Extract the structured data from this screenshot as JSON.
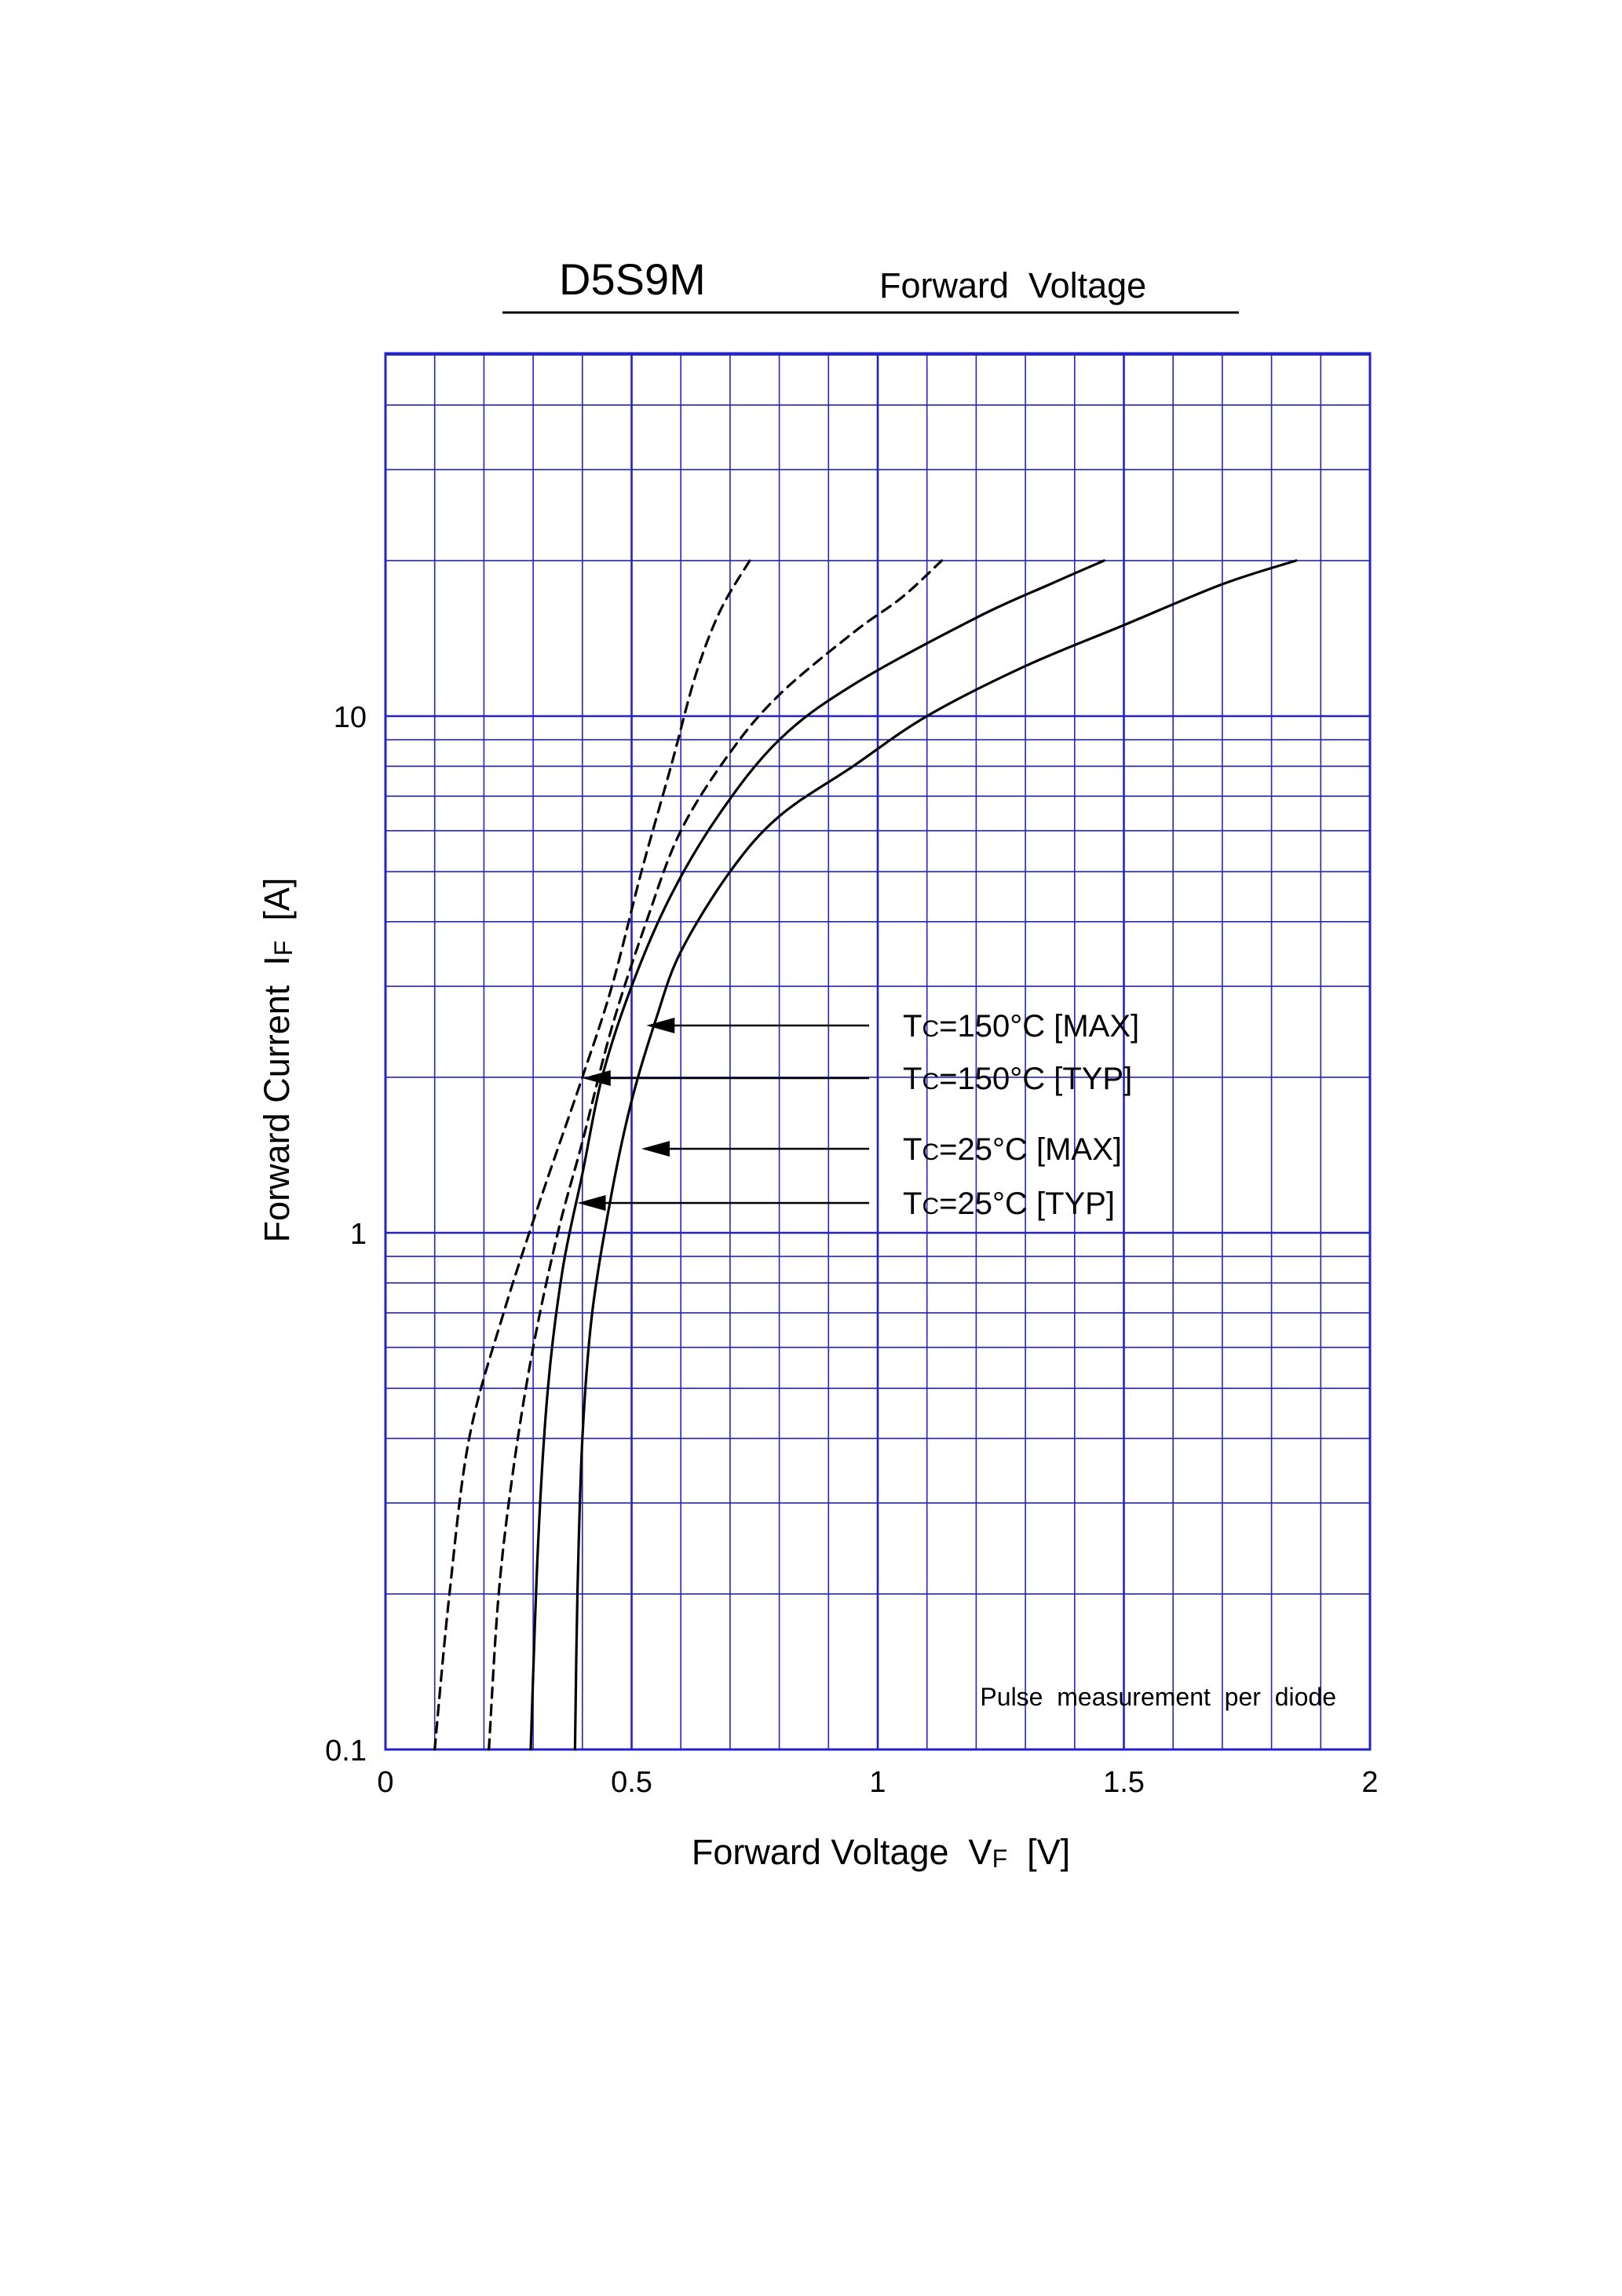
{
  "header": {
    "part_number": "D5S9M",
    "title": "Forward  Voltage"
  },
  "chart_data": {
    "type": "line",
    "title": "Forward Voltage",
    "xlabel": "Forward Voltage  VF  [V]",
    "xlabel_main": "Forward Voltage  V",
    "xlabel_sub": "F",
    "xlabel_unit": "  [V]",
    "ylabel": "Forward Current  IF  [A]",
    "ylabel_main": "Forward Current  I",
    "ylabel_sub": "F",
    "ylabel_unit": "  [A]",
    "xlim": [
      0,
      2
    ],
    "ylim": [
      0.1,
      40
    ],
    "yscale": "log",
    "grid": true,
    "x_ticks": [
      0,
      0.5,
      1,
      1.5,
      2
    ],
    "x_tick_labels": [
      "0",
      "0.5",
      "1",
      "1.5",
      "2"
    ],
    "y_ticks": [
      0.1,
      1,
      10
    ],
    "y_tick_labels": [
      "0.1",
      "1",
      "10"
    ],
    "note": "Pulse  measurement  per  diode",
    "grid_color": "#2323c8",
    "series": [
      {
        "name": "Tc=150°C [MAX]",
        "style": "dashed",
        "x": [
          0.21,
          0.23,
          0.26,
          0.3,
          0.35,
          0.4,
          0.46,
          0.53,
          0.6,
          0.7,
          0.8,
          0.95,
          1.05,
          1.13
        ],
        "y": [
          0.1,
          0.2,
          0.35,
          0.6,
          1,
          1.5,
          2.5,
          4,
          6,
          8.5,
          11,
          14.5,
          17,
          20
        ]
      },
      {
        "name": "Tc=150°C [TYP]",
        "style": "dashed",
        "x": [
          0.1,
          0.13,
          0.17,
          0.24,
          0.32,
          0.4,
          0.46,
          0.52,
          0.58,
          0.63,
          0.68,
          0.74
        ],
        "y": [
          0.1,
          0.2,
          0.4,
          0.7,
          1.2,
          2,
          3,
          5,
          8,
          12,
          16,
          20
        ]
      },
      {
        "name": "Tc=25°C [MAX]",
        "style": "solid",
        "x": [
          0.385,
          0.39,
          0.4,
          0.42,
          0.46,
          0.5,
          0.55,
          0.6,
          0.7,
          0.8,
          0.95,
          1.1,
          1.3,
          1.5,
          1.7,
          1.85
        ],
        "y": [
          0.1,
          0.2,
          0.4,
          0.7,
          1.2,
          1.8,
          2.6,
          3.5,
          5,
          6.4,
          8,
          10,
          12.5,
          15,
          18,
          20
        ]
      },
      {
        "name": "Tc=25°C [TYP]",
        "style": "solid",
        "x": [
          0.295,
          0.31,
          0.33,
          0.36,
          0.4,
          0.44,
          0.5,
          0.58,
          0.68,
          0.8,
          0.95,
          1.2,
          1.35,
          1.46
        ],
        "y": [
          0.1,
          0.25,
          0.5,
          0.85,
          1.3,
          2,
          3,
          4.5,
          6.5,
          9,
          11.5,
          15.5,
          18,
          20
        ]
      }
    ],
    "annotations": [
      {
        "label_main": "T",
        "label_sub": "C",
        "label_rest": "=150°C [MAX]",
        "points_to": [
          0.53,
          2.5
        ]
      },
      {
        "label_main": "T",
        "label_sub": "C",
        "label_rest": "=150°C [TYP]",
        "points_to": [
          0.4,
          2
        ]
      },
      {
        "label_main": "T",
        "label_sub": "C",
        "label_rest": "=25°C [MAX]",
        "points_to": [
          0.52,
          1.45
        ]
      },
      {
        "label_main": "T",
        "label_sub": "C",
        "label_rest": "=25°C [TYP]",
        "points_to": [
          0.39,
          1.15
        ]
      }
    ]
  }
}
